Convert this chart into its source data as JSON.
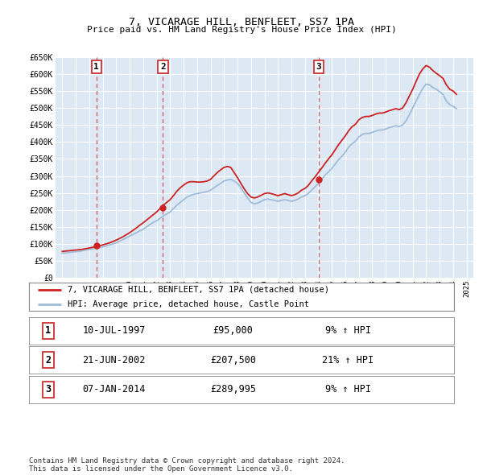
{
  "title": "7, VICARAGE HILL, BENFLEET, SS7 1PA",
  "subtitle": "Price paid vs. HM Land Registry's House Price Index (HPI)",
  "hpi_line_color": "#a0bcd8",
  "price_line_color": "#cc2222",
  "background_color": "#ffffff",
  "plot_bg_color": "#dce9f5",
  "grid_color": "#ffffff",
  "ylim": [
    0,
    650000
  ],
  "yticks": [
    0,
    50000,
    100000,
    150000,
    200000,
    250000,
    300000,
    350000,
    400000,
    450000,
    500000,
    550000,
    600000,
    650000
  ],
  "xlim_start": 1994.5,
  "xlim_end": 2025.5,
  "xticks": [
    1995,
    1996,
    1997,
    1998,
    1999,
    2000,
    2001,
    2002,
    2003,
    2004,
    2005,
    2006,
    2007,
    2008,
    2009,
    2010,
    2011,
    2012,
    2013,
    2014,
    2015,
    2016,
    2017,
    2018,
    2019,
    2020,
    2021,
    2022,
    2023,
    2024,
    2025
  ],
  "sale_dates": [
    1997.53,
    2002.47,
    2014.02
  ],
  "sale_prices": [
    95000,
    207500,
    289995
  ],
  "sale_labels": [
    "1",
    "2",
    "3"
  ],
  "sale_label_border_color": "#cc3333",
  "legend_label_price": "7, VICARAGE HILL, BENFLEET, SS7 1PA (detached house)",
  "legend_label_hpi": "HPI: Average price, detached house, Castle Point",
  "table_rows": [
    {
      "num": "1",
      "date": "10-JUL-1997",
      "price": "£95,000",
      "hpi": "9% ↑ HPI"
    },
    {
      "num": "2",
      "date": "21-JUN-2002",
      "price": "£207,500",
      "hpi": "21% ↑ HPI"
    },
    {
      "num": "3",
      "date": "07-JAN-2014",
      "price": "£289,995",
      "hpi": "9% ↑ HPI"
    }
  ],
  "footer": "Contains HM Land Registry data © Crown copyright and database right 2024.\nThis data is licensed under the Open Government Licence v3.0.",
  "hpi_x": [
    1995.0,
    1995.25,
    1995.5,
    1995.75,
    1996.0,
    1996.25,
    1996.5,
    1996.75,
    1997.0,
    1997.25,
    1997.5,
    1997.75,
    1998.0,
    1998.25,
    1998.5,
    1998.75,
    1999.0,
    1999.25,
    1999.5,
    1999.75,
    2000.0,
    2000.25,
    2000.5,
    2000.75,
    2001.0,
    2001.25,
    2001.5,
    2001.75,
    2002.0,
    2002.25,
    2002.5,
    2002.75,
    2003.0,
    2003.25,
    2003.5,
    2003.75,
    2004.0,
    2004.25,
    2004.5,
    2004.75,
    2005.0,
    2005.25,
    2005.5,
    2005.75,
    2006.0,
    2006.25,
    2006.5,
    2006.75,
    2007.0,
    2007.25,
    2007.5,
    2007.75,
    2008.0,
    2008.25,
    2008.5,
    2008.75,
    2009.0,
    2009.25,
    2009.5,
    2009.75,
    2010.0,
    2010.25,
    2010.5,
    2010.75,
    2011.0,
    2011.25,
    2011.5,
    2011.75,
    2012.0,
    2012.25,
    2012.5,
    2012.75,
    2013.0,
    2013.25,
    2013.5,
    2013.75,
    2014.0,
    2014.25,
    2014.5,
    2014.75,
    2015.0,
    2015.25,
    2015.5,
    2015.75,
    2016.0,
    2016.25,
    2016.5,
    2016.75,
    2017.0,
    2017.25,
    2017.5,
    2017.75,
    2018.0,
    2018.25,
    2018.5,
    2018.75,
    2019.0,
    2019.25,
    2019.5,
    2019.75,
    2020.0,
    2020.25,
    2020.5,
    2020.75,
    2021.0,
    2021.25,
    2021.5,
    2021.75,
    2022.0,
    2022.25,
    2022.5,
    2022.75,
    2023.0,
    2023.25,
    2023.5,
    2023.75,
    2024.0,
    2024.25
  ],
  "hpi_y": [
    73000,
    74000,
    75000,
    76000,
    77000,
    78000,
    80000,
    82000,
    84000,
    86000,
    87000,
    89000,
    91000,
    94000,
    97000,
    100000,
    103000,
    108000,
    113000,
    118000,
    123000,
    128000,
    133000,
    138000,
    143000,
    150000,
    157000,
    163000,
    168000,
    175000,
    182000,
    188000,
    194000,
    204000,
    214000,
    222000,
    230000,
    238000,
    242000,
    246000,
    248000,
    250000,
    252000,
    254000,
    258000,
    265000,
    272000,
    278000,
    285000,
    288000,
    290000,
    285000,
    278000,
    265000,
    250000,
    235000,
    222000,
    218000,
    220000,
    225000,
    230000,
    232000,
    230000,
    228000,
    225000,
    228000,
    230000,
    228000,
    225000,
    228000,
    232000,
    238000,
    242000,
    248000,
    258000,
    268000,
    278000,
    290000,
    302000,
    312000,
    322000,
    335000,
    348000,
    358000,
    370000,
    385000,
    395000,
    402000,
    415000,
    422000,
    425000,
    425000,
    428000,
    432000,
    435000,
    435000,
    438000,
    442000,
    445000,
    448000,
    445000,
    450000,
    462000,
    480000,
    500000,
    520000,
    540000,
    558000,
    570000,
    568000,
    560000,
    555000,
    548000,
    540000,
    520000,
    510000,
    505000,
    498000
  ],
  "price_x": [
    1995.0,
    1995.25,
    1995.5,
    1995.75,
    1996.0,
    1996.25,
    1996.5,
    1996.75,
    1997.0,
    1997.25,
    1997.5,
    1997.75,
    1998.0,
    1998.25,
    1998.5,
    1998.75,
    1999.0,
    1999.25,
    1999.5,
    1999.75,
    2000.0,
    2000.25,
    2000.5,
    2000.75,
    2001.0,
    2001.25,
    2001.5,
    2001.75,
    2002.0,
    2002.25,
    2002.5,
    2002.75,
    2003.0,
    2003.25,
    2003.5,
    2003.75,
    2004.0,
    2004.25,
    2004.5,
    2004.75,
    2005.0,
    2005.25,
    2005.5,
    2005.75,
    2006.0,
    2006.25,
    2006.5,
    2006.75,
    2007.0,
    2007.25,
    2007.5,
    2007.75,
    2008.0,
    2008.25,
    2008.5,
    2008.75,
    2009.0,
    2009.25,
    2009.5,
    2009.75,
    2010.0,
    2010.25,
    2010.5,
    2010.75,
    2011.0,
    2011.25,
    2011.5,
    2011.75,
    2012.0,
    2012.25,
    2012.5,
    2012.75,
    2013.0,
    2013.25,
    2013.5,
    2013.75,
    2014.0,
    2014.25,
    2014.5,
    2014.75,
    2015.0,
    2015.25,
    2015.5,
    2015.75,
    2016.0,
    2016.25,
    2016.5,
    2016.75,
    2017.0,
    2017.25,
    2017.5,
    2017.75,
    2018.0,
    2018.25,
    2018.5,
    2018.75,
    2019.0,
    2019.25,
    2019.5,
    2019.75,
    2020.0,
    2020.25,
    2020.5,
    2020.75,
    2021.0,
    2021.25,
    2021.5,
    2021.75,
    2022.0,
    2022.25,
    2022.5,
    2022.75,
    2023.0,
    2023.25,
    2023.5,
    2023.75,
    2024.0,
    2024.25
  ],
  "price_y": [
    78000,
    79000,
    80000,
    81000,
    82000,
    83000,
    84000,
    86000,
    88000,
    90000,
    92000,
    94000,
    97000,
    100000,
    103000,
    107000,
    111000,
    116000,
    121000,
    127000,
    133000,
    140000,
    147000,
    155000,
    162000,
    170000,
    178000,
    186000,
    194000,
    204000,
    214000,
    222000,
    230000,
    242000,
    255000,
    265000,
    273000,
    280000,
    283000,
    283000,
    282000,
    282000,
    283000,
    285000,
    290000,
    300000,
    310000,
    318000,
    325000,
    328000,
    325000,
    310000,
    295000,
    278000,
    262000,
    248000,
    238000,
    235000,
    238000,
    243000,
    248000,
    250000,
    248000,
    245000,
    242000,
    245000,
    248000,
    245000,
    242000,
    245000,
    250000,
    258000,
    263000,
    272000,
    285000,
    297000,
    310000,
    323000,
    337000,
    350000,
    362000,
    377000,
    392000,
    405000,
    418000,
    433000,
    445000,
    452000,
    465000,
    472000,
    475000,
    475000,
    478000,
    482000,
    485000,
    485000,
    488000,
    492000,
    495000,
    498000,
    495000,
    500000,
    515000,
    535000,
    555000,
    578000,
    600000,
    615000,
    625000,
    620000,
    610000,
    602000,
    595000,
    587000,
    568000,
    555000,
    550000,
    540000
  ]
}
